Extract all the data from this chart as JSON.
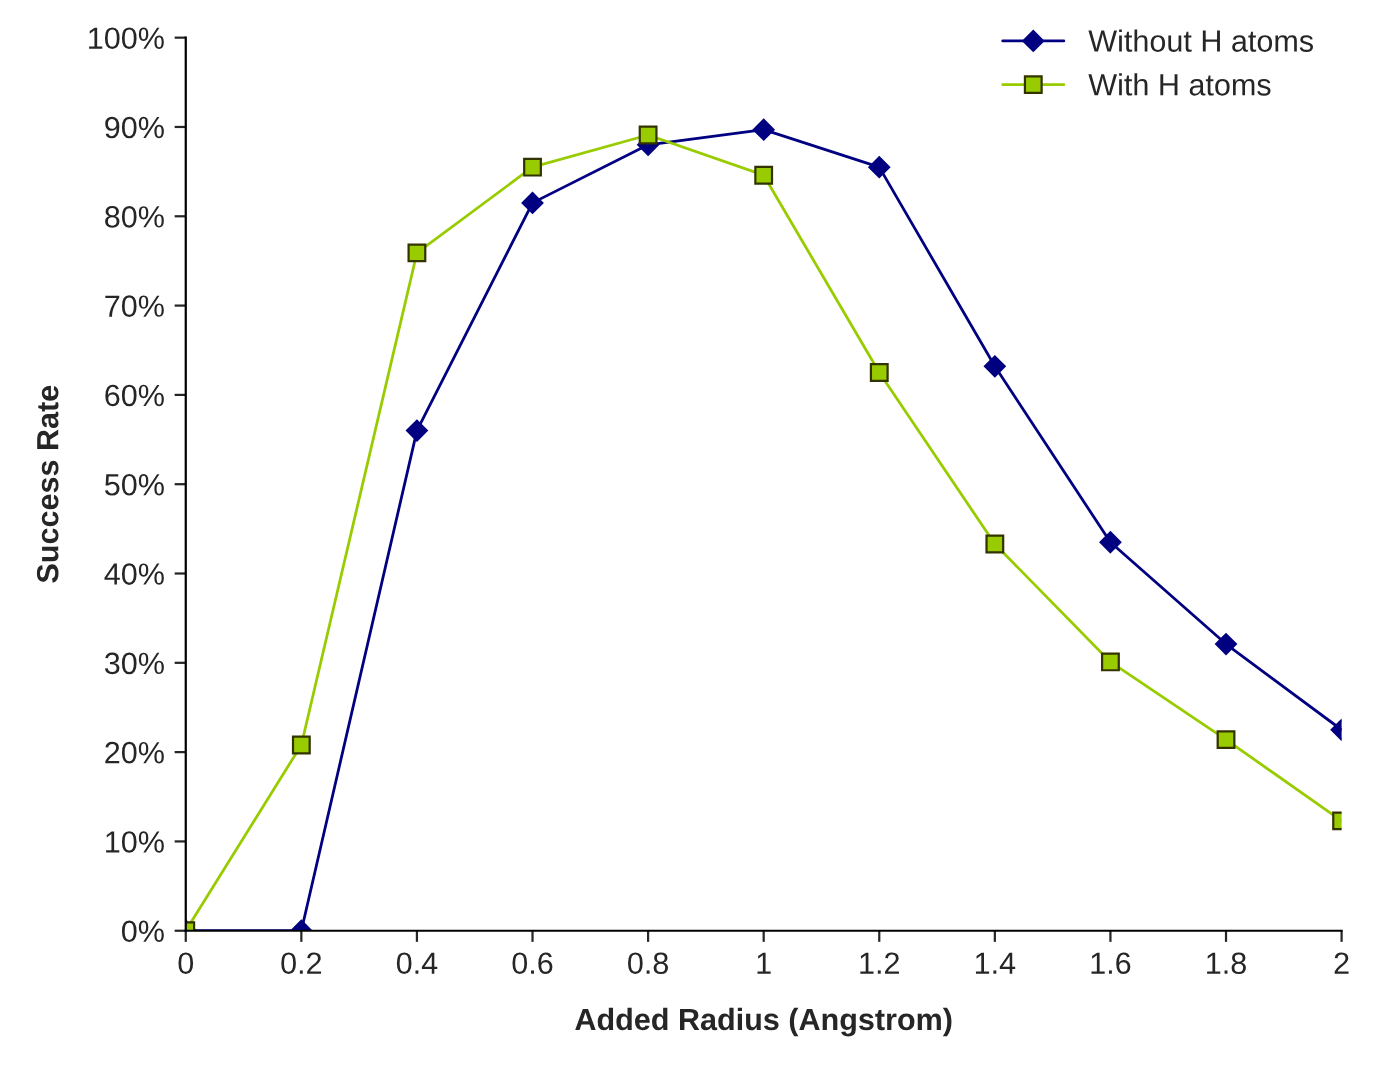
{
  "chart_data": {
    "type": "line",
    "xlabel": "Added Radius (Angstrom)",
    "ylabel": "Success Rate",
    "x": [
      0,
      0.2,
      0.4,
      0.6,
      0.8,
      1,
      1.2,
      1.4,
      1.6,
      1.8,
      2
    ],
    "series": [
      {
        "name": "Without H atoms",
        "color": "#000080",
        "marker": "diamond",
        "values": [
          0,
          0,
          56,
          81.5,
          88,
          89.7,
          85.5,
          63.2,
          43.5,
          32.1,
          22.5
        ]
      },
      {
        "name": "With H atoms",
        "color": "#99cc00",
        "marker": "square",
        "values": [
          0,
          20.8,
          75.9,
          85.5,
          89.1,
          84.6,
          62.5,
          43.3,
          30.1,
          21.4,
          12.3
        ]
      }
    ],
    "xlim": [
      0,
      2
    ],
    "xticks": [
      0,
      0.2,
      0.4,
      0.6,
      0.8,
      1,
      1.2,
      1.4,
      1.6,
      1.8,
      2
    ],
    "ylim": [
      0,
      100
    ],
    "yticks": [
      {
        "value": 0,
        "label": "0%"
      },
      {
        "value": 10,
        "label": "10%"
      },
      {
        "value": 20,
        "label": "20%"
      },
      {
        "value": 30,
        "label": "30%"
      },
      {
        "value": 40,
        "label": "40%"
      },
      {
        "value": 50,
        "label": "50%"
      },
      {
        "value": 60,
        "label": "60%"
      },
      {
        "value": 70,
        "label": "70%"
      },
      {
        "value": 80,
        "label": "80%"
      },
      {
        "value": 90,
        "label": "90%"
      },
      {
        "value": 100,
        "label": "100%"
      }
    ],
    "grid": false,
    "legend": "top right",
    "line_style": "solid"
  }
}
